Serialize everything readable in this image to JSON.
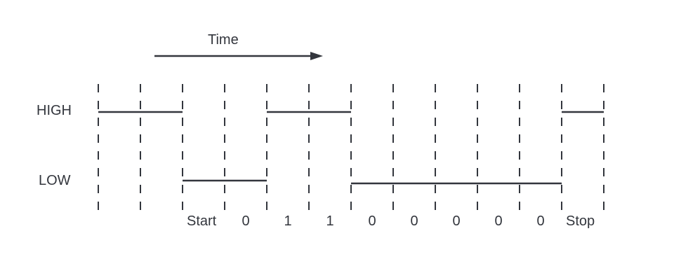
{
  "diagram": {
    "time_label": "Time",
    "levels": {
      "high": "HIGH",
      "low": "LOW"
    },
    "bit_labels": [
      "Start",
      "0",
      "1",
      "1",
      "0",
      "0",
      "0",
      "0",
      "0",
      "Stop"
    ],
    "signal": [
      "H",
      "H",
      "L",
      "L",
      "H",
      "H",
      "L",
      "L",
      "L",
      "L",
      "L",
      "H",
      "H"
    ],
    "colors": {
      "line": "#33363d",
      "background": "#ffffff"
    }
  }
}
